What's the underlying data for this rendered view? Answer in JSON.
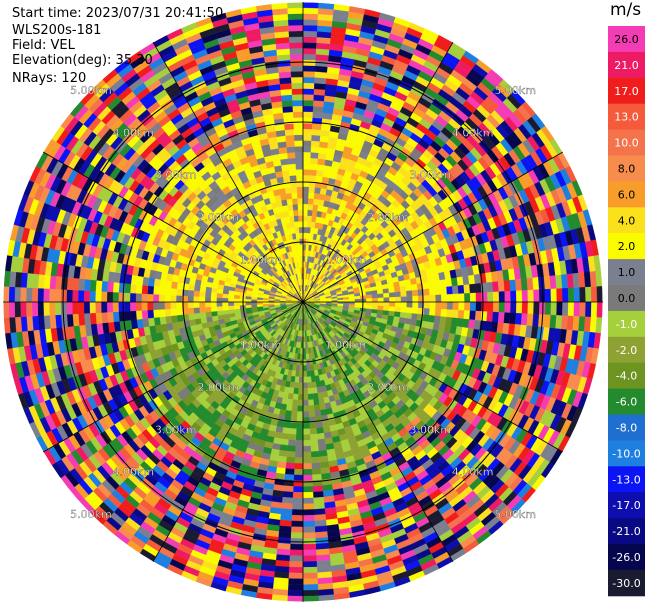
{
  "header": {
    "start_time": "Start time: 2023/07/31 20:41:50",
    "instrument": "WLS200s-181",
    "field": "Field: VEL",
    "elevation": "Elevation(deg): 35.30",
    "nrays": "NRays: 120"
  },
  "colorbar": {
    "unit": "m/s",
    "bins": [
      {
        "label": "26.0",
        "color": "#f43cb4"
      },
      {
        "label": "21.0",
        "color": "#ee1b64"
      },
      {
        "label": "17.0",
        "color": "#f11c1c"
      },
      {
        "label": "13.0",
        "color": "#f55a3a"
      },
      {
        "label": "10.0",
        "color": "#f4734a"
      },
      {
        "label": "8.0",
        "color": "#f88c4c"
      },
      {
        "label": "6.0",
        "color": "#f89d2a"
      },
      {
        "label": "4.0",
        "color": "#fbe11c"
      },
      {
        "label": "2.0",
        "color": "#fbfb00"
      },
      {
        "label": "1.0",
        "color": "#7b8090"
      },
      {
        "label": "0.0",
        "color": "#7a7a7a"
      },
      {
        "label": "-1.0",
        "color": "#a6cf3c"
      },
      {
        "label": "-2.0",
        "color": "#8da232"
      },
      {
        "label": "-4.0",
        "color": "#6d9420"
      },
      {
        "label": "-6.0",
        "color": "#238a2e"
      },
      {
        "label": "-8.0",
        "color": "#1e6fcf"
      },
      {
        "label": "-10.0",
        "color": "#1f7fe0"
      },
      {
        "label": "-13.0",
        "color": "#0a14f5"
      },
      {
        "label": "-17.0",
        "color": "#0d0db0"
      },
      {
        "label": "-21.0",
        "color": "#090983"
      },
      {
        "label": "-26.0",
        "color": "#06064f"
      },
      {
        "label": "-30.0",
        "color": "#1a1a30"
      }
    ]
  },
  "chart_data": {
    "type": "heatmap",
    "projection": "polar PPI",
    "field": "VEL",
    "units": "m/s",
    "elevation_deg": 35.3,
    "n_rays": 120,
    "range_rings_km": [
      1.0,
      2.0,
      3.0,
      4.0,
      5.0
    ],
    "ring_labels": [
      "1.00km",
      "2.00km",
      "3.00km",
      "4.00km",
      "5.00km"
    ],
    "max_range_km": 5.0,
    "spoke_step_deg": 30,
    "regions": [
      {
        "name": "north near field",
        "range_km": [
          0.0,
          3.0
        ],
        "azimuth_deg": [
          -90,
          90
        ],
        "dominant_values_ms": [
          2.0,
          4.0,
          0.0
        ]
      },
      {
        "name": "south near field",
        "range_km": [
          0.0,
          3.0
        ],
        "azimuth_deg": [
          90,
          270
        ],
        "dominant_values_ms": [
          -1.0,
          -2.0,
          -4.0,
          -6.0
        ]
      },
      {
        "name": "far field noise",
        "range_km": [
          3.0,
          5.0
        ],
        "azimuth_deg": [
          0,
          360
        ],
        "dominant_values_ms": [
          26.0,
          17.0,
          8.0,
          -13.0,
          -21.0
        ]
      }
    ]
  }
}
